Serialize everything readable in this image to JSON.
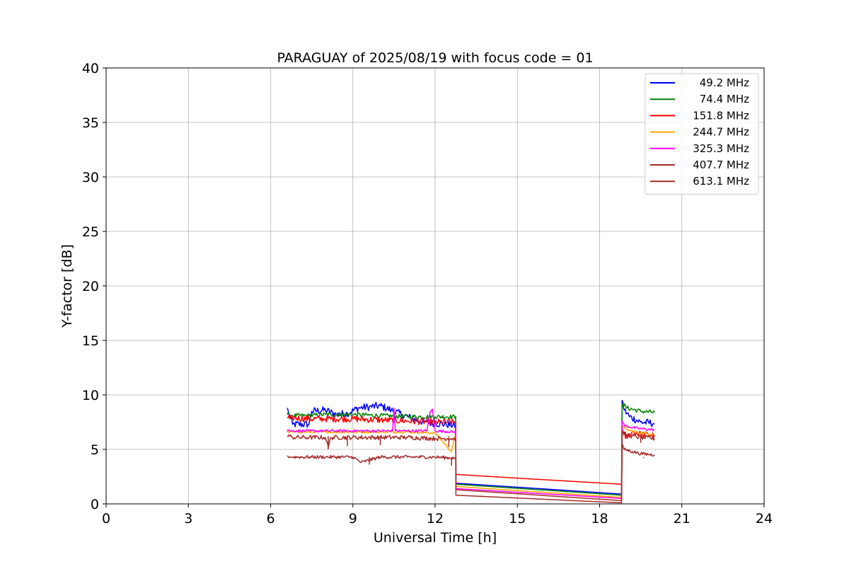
{
  "chart_data": {
    "type": "line",
    "title": "PARAGUAY of 2025/08/19 with focus code = 01",
    "xlabel": "Universal Time [h]",
    "ylabel": "Y-factor [dB]",
    "xlim": [
      0,
      24
    ],
    "ylim": [
      0,
      40
    ],
    "xticks": [
      0,
      3,
      6,
      9,
      12,
      15,
      18,
      21,
      24
    ],
    "yticks": [
      0,
      5,
      10,
      15,
      20,
      25,
      30,
      35,
      40
    ],
    "xtick_labels": [
      "0",
      "3",
      "6",
      "9",
      "12",
      "15",
      "18",
      "21",
      "24"
    ],
    "ytick_labels": [
      "0",
      "5",
      "10",
      "15",
      "20",
      "25",
      "30",
      "35",
      "40"
    ],
    "grid": true,
    "legend_position": "top-right",
    "series": [
      {
        "name": " 49.2 MHz",
        "color": "#0000ff",
        "noise": 0.35,
        "x": [
          6.6,
          6.65,
          6.7,
          6.8,
          7.4,
          7.5,
          8.0,
          8.4,
          8.8,
          9.2,
          9.6,
          10.0,
          10.4,
          10.8,
          11.2,
          11.6,
          12.0,
          12.4,
          12.75,
          12.76,
          18.8,
          18.82,
          18.9,
          19.1,
          19.5,
          20.0
        ],
        "y": [
          8.8,
          8.4,
          8.0,
          7.3,
          7.3,
          8.5,
          8.6,
          8.2,
          8.3,
          8.8,
          8.9,
          9.0,
          8.6,
          8.2,
          7.8,
          7.5,
          7.4,
          7.3,
          7.2,
          1.9,
          0.9,
          9.5,
          8.6,
          8.0,
          7.5,
          7.4
        ]
      },
      {
        "name": " 74.4 MHz",
        "color": "#008000",
        "noise": 0.2,
        "x": [
          6.6,
          6.7,
          6.8,
          7.4,
          8.0,
          9.0,
          10.0,
          11.0,
          12.0,
          12.75,
          12.76,
          18.8,
          18.82,
          19.0,
          19.5,
          20.0
        ],
        "y": [
          8.2,
          8.1,
          8.1,
          8.1,
          8.2,
          8.2,
          8.1,
          8.0,
          8.0,
          8.0,
          1.8,
          0.8,
          9.2,
          8.8,
          8.5,
          8.4
        ]
      },
      {
        "name": "151.8 MHz",
        "color": "#ff0000",
        "noise": 0.3,
        "x": [
          6.6,
          6.7,
          6.8,
          7.4,
          8.0,
          9.0,
          10.0,
          11.0,
          12.0,
          12.75,
          12.76,
          18.8,
          18.82,
          18.95,
          19.2,
          19.5,
          20.0
        ],
        "y": [
          7.9,
          7.8,
          7.9,
          7.8,
          7.8,
          7.8,
          7.7,
          7.6,
          7.5,
          7.5,
          2.7,
          1.8,
          7.0,
          6.0,
          6.6,
          6.4,
          6.3
        ]
      },
      {
        "name": "244.7 MHz",
        "color": "#ffa500",
        "noise": 0.1,
        "x": [
          6.6,
          6.7,
          6.8,
          7.4,
          8.0,
          9.0,
          10.0,
          11.0,
          12.0,
          12.6,
          12.75,
          12.76,
          18.8,
          18.82,
          19.0,
          19.5,
          20.0
        ],
        "y": [
          6.6,
          6.6,
          6.6,
          6.6,
          6.6,
          6.6,
          6.6,
          6.6,
          6.5,
          4.8,
          6.5,
          1.6,
          0.6,
          7.2,
          6.8,
          6.5,
          6.4
        ]
      },
      {
        "name": "325.3 MHz",
        "color": "#ff00ff",
        "noise": 0.12,
        "x": [
          6.6,
          6.7,
          6.8,
          7.4,
          8.0,
          9.0,
          10.0,
          10.45,
          10.5,
          10.55,
          11.0,
          11.7,
          11.8,
          11.9,
          12.0,
          12.75,
          12.76,
          18.8,
          18.82,
          18.9,
          19.2,
          19.5,
          20.0
        ],
        "y": [
          6.8,
          6.7,
          6.7,
          6.7,
          6.7,
          6.7,
          6.7,
          6.7,
          8.8,
          6.7,
          6.7,
          6.7,
          8.3,
          8.7,
          6.7,
          6.6,
          1.4,
          0.5,
          7.6,
          7.2,
          7.0,
          6.9,
          6.8
        ]
      },
      {
        "name": "407.7 MHz",
        "color": "#a52a2a",
        "noise": 0.2,
        "x": [
          6.6,
          6.7,
          6.8,
          7.4,
          8.0,
          8.1,
          8.2,
          9.0,
          10.0,
          11.0,
          12.0,
          12.75,
          12.76,
          18.8,
          18.82,
          19.0,
          19.5,
          20.0
        ],
        "y": [
          6.2,
          6.2,
          6.1,
          6.1,
          6.1,
          5.2,
          6.1,
          6.1,
          6.1,
          6.1,
          6.0,
          6.0,
          1.3,
          0.3,
          6.6,
          6.3,
          6.1,
          6.0
        ],
        "spikes": [
          [
            8.1,
            5.0
          ],
          [
            8.8,
            5.3
          ],
          [
            10.0,
            5.4
          ],
          [
            12.5,
            5.2
          ],
          [
            19.5,
            5.6
          ]
        ]
      },
      {
        "name": "613.1 MHz",
        "color": "#a52a2a",
        "noise": 0.15,
        "x": [
          6.6,
          6.7,
          6.8,
          7.4,
          8.0,
          9.0,
          9.3,
          10.0,
          11.0,
          12.0,
          12.75,
          12.76,
          18.8,
          18.82,
          18.9,
          19.2,
          19.5,
          20.0
        ],
        "y": [
          4.4,
          4.3,
          4.3,
          4.3,
          4.3,
          4.3,
          3.8,
          4.3,
          4.3,
          4.3,
          4.2,
          0.8,
          0.1,
          5.4,
          5.0,
          4.8,
          4.6,
          4.5
        ],
        "spikes": [
          [
            9.6,
            3.6
          ],
          [
            12.6,
            3.5
          ],
          [
            19.6,
            4.2
          ]
        ]
      }
    ]
  }
}
